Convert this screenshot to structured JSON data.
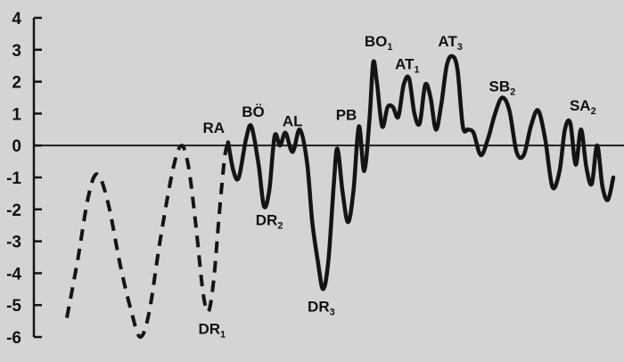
{
  "chart_data": {
    "type": "line",
    "title": "",
    "xlabel": "",
    "ylabel": "",
    "ylim": [
      -6,
      4
    ],
    "yticks": [
      "4",
      "3",
      "2",
      "1",
      "0",
      "-1",
      "-2",
      "-3",
      "-4",
      "-5",
      "-6"
    ],
    "grid": false,
    "colors": {
      "ink": "#141414",
      "background": "#d4d4d4"
    },
    "series": [
      {
        "style": "dashed",
        "points": [
          [
            0,
            -5.4
          ],
          [
            0.6,
            -3.6
          ],
          [
            1.2,
            -1.6
          ],
          [
            1.7,
            -0.9
          ],
          [
            2.3,
            -1.8
          ],
          [
            3.0,
            -3.8
          ],
          [
            3.6,
            -5.2
          ],
          [
            4.1,
            -6.0
          ],
          [
            4.6,
            -5.2
          ],
          [
            5.2,
            -3.0
          ],
          [
            5.9,
            -0.8
          ],
          [
            6.4,
            0.0
          ],
          [
            6.8,
            -0.7
          ],
          [
            7.2,
            -2.5
          ],
          [
            7.6,
            -4.6
          ],
          [
            7.9,
            -5.2
          ],
          [
            8.2,
            -4.2
          ],
          [
            8.5,
            -2.2
          ],
          [
            8.8,
            -0.4
          ],
          [
            9.0,
            0.1
          ]
        ]
      },
      {
        "style": "solid",
        "points": [
          [
            9.0,
            0.1
          ],
          [
            9.3,
            -0.8
          ],
          [
            9.6,
            -1.0
          ],
          [
            10.0,
            0.2
          ],
          [
            10.3,
            0.6
          ],
          [
            10.7,
            -0.6
          ],
          [
            11.0,
            -1.9
          ],
          [
            11.3,
            -1.4
          ],
          [
            11.6,
            0.3
          ],
          [
            11.9,
            0.0
          ],
          [
            12.2,
            0.4
          ],
          [
            12.6,
            -0.2
          ],
          [
            13.0,
            0.5
          ],
          [
            13.4,
            -0.5
          ],
          [
            13.7,
            -2.4
          ],
          [
            14.0,
            -3.6
          ],
          [
            14.3,
            -4.5
          ],
          [
            14.6,
            -3.6
          ],
          [
            14.9,
            -1.2
          ],
          [
            15.1,
            -0.1
          ],
          [
            15.4,
            -1.5
          ],
          [
            15.7,
            -2.4
          ],
          [
            16.0,
            -1.4
          ],
          [
            16.3,
            0.6
          ],
          [
            16.6,
            -0.8
          ],
          [
            16.9,
            0.9
          ],
          [
            17.1,
            2.6
          ],
          [
            17.3,
            2.0
          ],
          [
            17.6,
            0.6
          ],
          [
            17.9,
            1.2
          ],
          [
            18.2,
            1.2
          ],
          [
            18.5,
            0.9
          ],
          [
            18.8,
            1.9
          ],
          [
            19.1,
            2.1
          ],
          [
            19.4,
            1.0
          ],
          [
            19.7,
            0.7
          ],
          [
            20.0,
            1.9
          ],
          [
            20.3,
            1.5
          ],
          [
            20.6,
            0.5
          ],
          [
            20.9,
            1.3
          ],
          [
            21.2,
            2.5
          ],
          [
            21.5,
            2.8
          ],
          [
            21.8,
            2.4
          ],
          [
            22.1,
            0.6
          ],
          [
            22.4,
            0.5
          ],
          [
            22.7,
            0.4
          ],
          [
            23.1,
            -0.3
          ],
          [
            23.5,
            0.2
          ],
          [
            23.9,
            1.0
          ],
          [
            24.3,
            1.5
          ],
          [
            24.7,
            1.1
          ],
          [
            25.1,
            -0.2
          ],
          [
            25.5,
            -0.3
          ],
          [
            25.9,
            0.6
          ],
          [
            26.3,
            1.1
          ],
          [
            26.7,
            0.2
          ],
          [
            27.1,
            -1.3
          ],
          [
            27.5,
            -0.8
          ],
          [
            27.8,
            0.5
          ],
          [
            28.1,
            0.7
          ],
          [
            28.4,
            -0.6
          ],
          [
            28.7,
            0.5
          ],
          [
            29.0,
            -0.7
          ],
          [
            29.3,
            -1.2
          ],
          [
            29.6,
            0.0
          ],
          [
            29.9,
            -1.3
          ],
          [
            30.2,
            -1.7
          ],
          [
            30.5,
            -1.0
          ]
        ]
      }
    ],
    "annotations": [
      {
        "label": "RA",
        "sub": "",
        "x": 8.2,
        "y": 0.4
      },
      {
        "label": "BÖ",
        "sub": "",
        "x": 10.4,
        "y": 0.9
      },
      {
        "label": "DR",
        "sub": "1",
        "x": 8.1,
        "y": -5.9
      },
      {
        "label": "DR",
        "sub": "2",
        "x": 11.3,
        "y": -2.5
      },
      {
        "label": "AL",
        "sub": "",
        "x": 12.6,
        "y": 0.6
      },
      {
        "label": "DR",
        "sub": "3",
        "x": 14.2,
        "y": -5.2
      },
      {
        "label": "PB",
        "sub": "",
        "x": 15.6,
        "y": 0.8
      },
      {
        "label": "BO",
        "sub": "1",
        "x": 17.4,
        "y": 3.1
      },
      {
        "label": "AT",
        "sub": "1",
        "x": 19.0,
        "y": 2.4
      },
      {
        "label": "AT",
        "sub": "3",
        "x": 21.4,
        "y": 3.1
      },
      {
        "label": "SB",
        "sub": "2",
        "x": 24.3,
        "y": 1.7
      },
      {
        "label": "SA",
        "sub": "2",
        "x": 28.8,
        "y": 1.1
      }
    ]
  }
}
